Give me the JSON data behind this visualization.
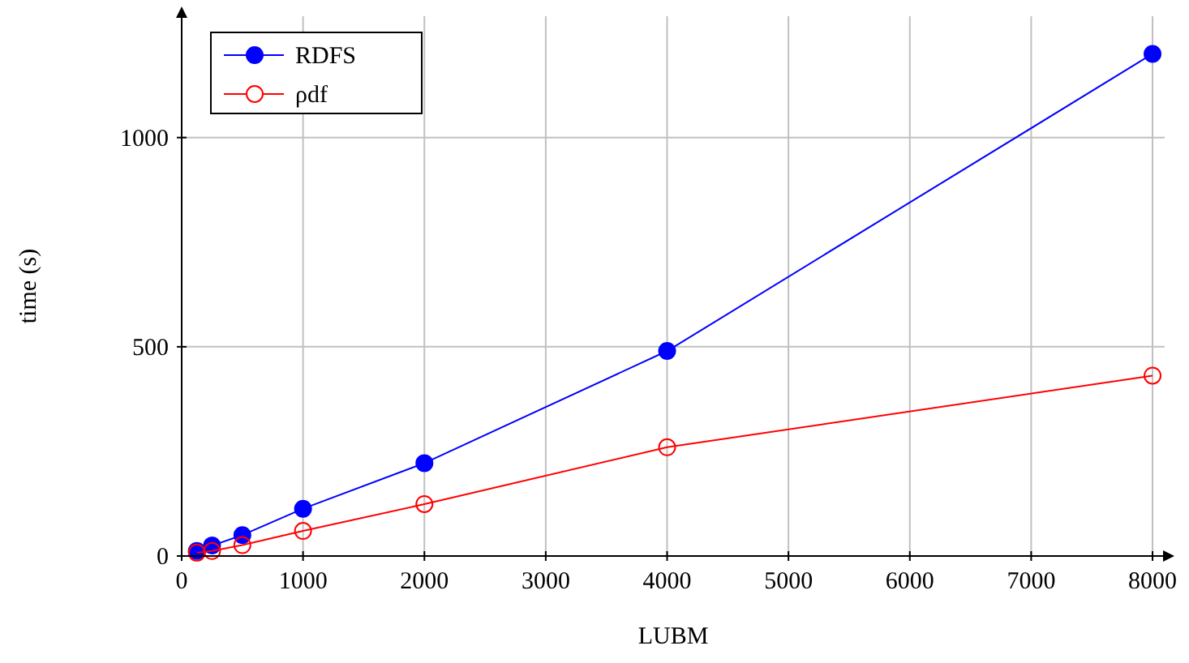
{
  "chart_data": {
    "type": "line",
    "xlabel": "LUBM",
    "ylabel": "time (s)",
    "x": [
      125,
      250,
      500,
      1000,
      2000,
      4000,
      8000
    ],
    "series": [
      {
        "name": "RDFS",
        "color": "#0000ff",
        "values": [
          12,
          25,
          50,
          113,
          222,
          490,
          1200
        ]
      },
      {
        "name": "ρdf",
        "color": "#ff0000",
        "values": [
          8,
          12,
          26,
          60,
          124,
          260,
          431
        ]
      }
    ],
    "xlim": [
      0,
      8100
    ],
    "ylim": [
      0,
      1290
    ],
    "xticks": [
      0,
      1000,
      2000,
      3000,
      4000,
      5000,
      6000,
      7000,
      8000
    ],
    "yticks": [
      0,
      500,
      1000
    ],
    "grid": true,
    "legend": "top left",
    "marker": "circle",
    "line_style": "solid"
  }
}
